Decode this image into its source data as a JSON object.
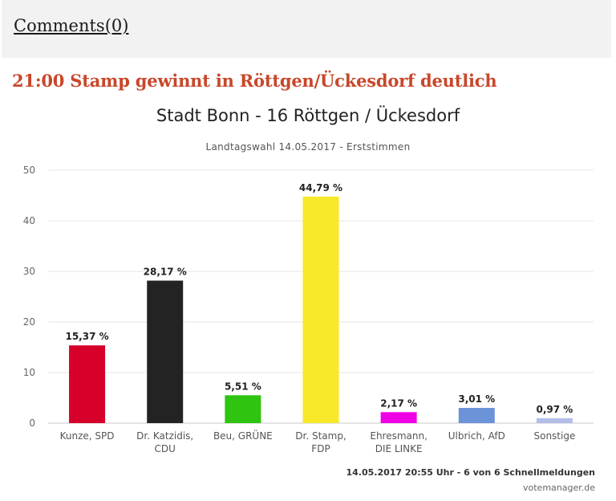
{
  "comments": {
    "label": "Comments(0)"
  },
  "post": {
    "headline": "21:00  Stamp gewinnt in Röttgen/Ückesdorf deutlich"
  },
  "footer": {
    "meta": "14.05.2017 20:55 Uhr - 6 von 6 Schnellmeldungen",
    "credit": "votemanager.de"
  },
  "chart_data": {
    "type": "bar",
    "title": "Stadt Bonn - 16 Röttgen / Ückesdorf",
    "subtitle": "Landtagswahl 14.05.2017 - Erststimmen",
    "categories": [
      [
        "Kunze, SPD"
      ],
      [
        "Dr. Katzidis,",
        "CDU"
      ],
      [
        "Beu, GRÜNE"
      ],
      [
        "Dr. Stamp,",
        "FDP"
      ],
      [
        "Ehresmann,",
        "DIE LINKE"
      ],
      [
        "Ulbrich, AfD"
      ],
      [
        "Sonstige"
      ]
    ],
    "values": [
      15.37,
      28.17,
      5.51,
      44.79,
      2.17,
      3.01,
      0.97
    ],
    "value_labels": [
      "15,37 %",
      "28,17 %",
      "5,51 %",
      "44,79 %",
      "2,17 %",
      "3,01 %",
      "0,97 %"
    ],
    "colors": [
      "#d6002a",
      "#232323",
      "#2ec40f",
      "#f7e82a",
      "#f000e6",
      "#6c93d8",
      "#b3bde8"
    ],
    "ylim": [
      0,
      50
    ],
    "yticks": [
      0,
      10,
      20,
      30,
      40,
      50
    ],
    "xlabel": "",
    "ylabel": "",
    "grid": true
  }
}
